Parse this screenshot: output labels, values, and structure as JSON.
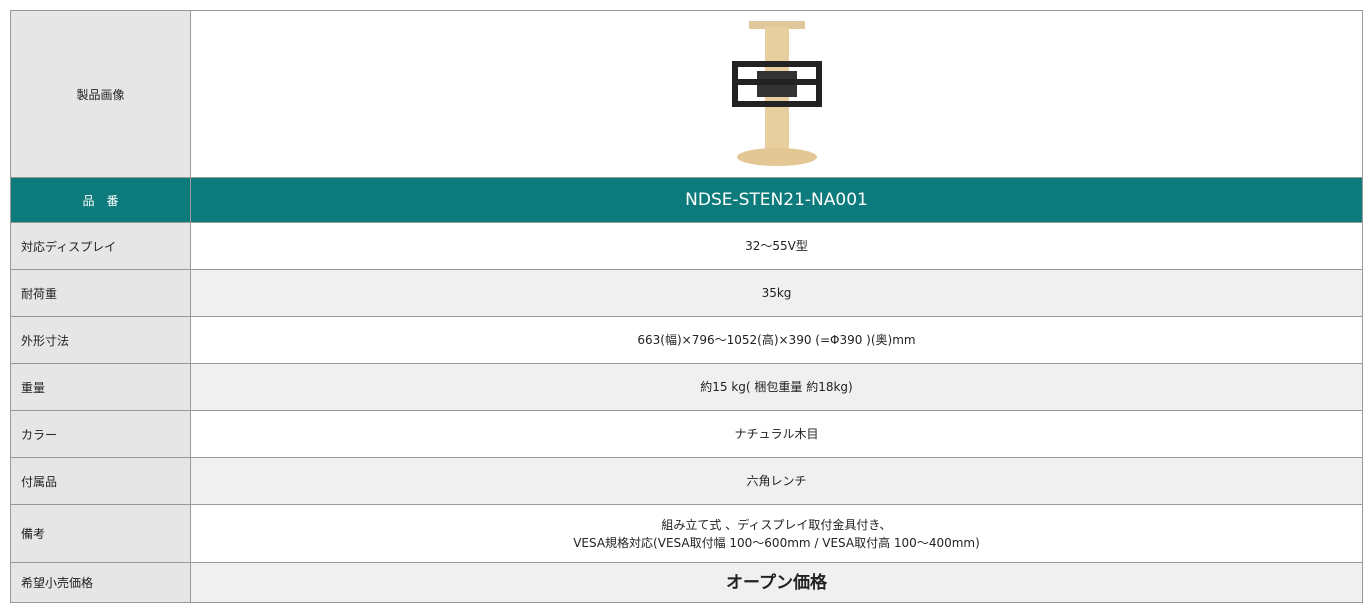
{
  "table": {
    "image_label": "製品画像",
    "header": [
      "品　番",
      "NDSE-STEN21-NA001"
    ],
    "rows": [
      {
        "label": "対応ディスプレイ",
        "value": [
          "32〜55V型"
        ]
      },
      {
        "label": "耐荷重",
        "value": [
          "35kg"
        ]
      },
      {
        "label": "外形寸法",
        "value": [
          "663(幅)×796〜1052(高)×390 (=Φ390 )(奥)mm"
        ]
      },
      {
        "label": "重量",
        "value": [
          "約15 kg( 梱包重量 約18kg)"
        ]
      },
      {
        "label": "カラー",
        "value": [
          "ナチュラル木目"
        ]
      },
      {
        "label": "付属品",
        "value": [
          "六角レンチ"
        ]
      },
      {
        "label": "備考",
        "value": [
          "組み立て式 、ディスプレイ取付金具付き、",
          "VESA規格対応(VESA取付幅 100〜600mm / VESA取付高 100〜400mm)"
        ]
      },
      {
        "label": "希望小売価格",
        "value": [
          "オープン価格"
        ]
      }
    ]
  }
}
